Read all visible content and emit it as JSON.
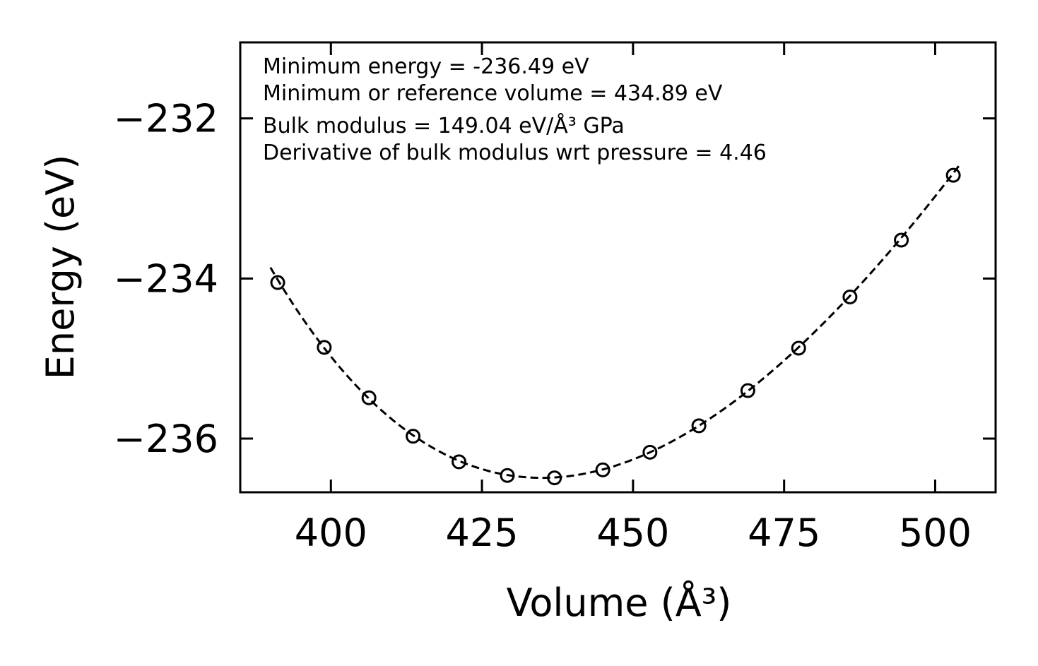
{
  "chart_data": {
    "type": "scatter",
    "title": "",
    "xlabel": "Volume (Å³)",
    "ylabel": "Energy (eV)",
    "xlim": [
      385,
      510
    ],
    "ylim": [
      -236.67,
      -231.05
    ],
    "xticks": [
      400,
      425,
      450,
      475,
      500
    ],
    "yticks": [
      -236,
      -234,
      -232
    ],
    "xtick_labels": [
      "400",
      "425",
      "450",
      "475",
      "500"
    ],
    "ytick_labels": [
      "−236",
      "−234",
      "−232"
    ],
    "grid": false,
    "series": [
      {
        "marker": "open-circle",
        "x": [
          391.2,
          398.9,
          406.3,
          413.6,
          421.2,
          429.2,
          437.0,
          445.0,
          452.8,
          460.9,
          469.0,
          477.4,
          485.9,
          494.4,
          503.0
        ],
        "y": [
          -234.05,
          -234.86,
          -235.49,
          -235.97,
          -236.29,
          -236.46,
          -236.49,
          -236.39,
          -236.17,
          -235.84,
          -235.4,
          -234.87,
          -234.23,
          -233.52,
          -232.71
        ]
      },
      {
        "style": "dashed-line",
        "fit": "birch-murnaghan",
        "params": {
          "E0": -236.49,
          "V0": 434.89,
          "B0_GPa": 149.04,
          "B0_prime": 4.46
        },
        "x_range": [
          390,
          504
        ]
      }
    ],
    "annotations": [
      "Minimum energy = -236.49 eV",
      "Minimum or reference volume = 434.89 eV",
      "Bulk modulus = 149.04 eV/Å³ GPa",
      "Derivative of bulk modulus wrt pressure = 4.46"
    ],
    "colors": {
      "line": "#000000",
      "marker": "#000000",
      "background": "#ffffff"
    }
  }
}
